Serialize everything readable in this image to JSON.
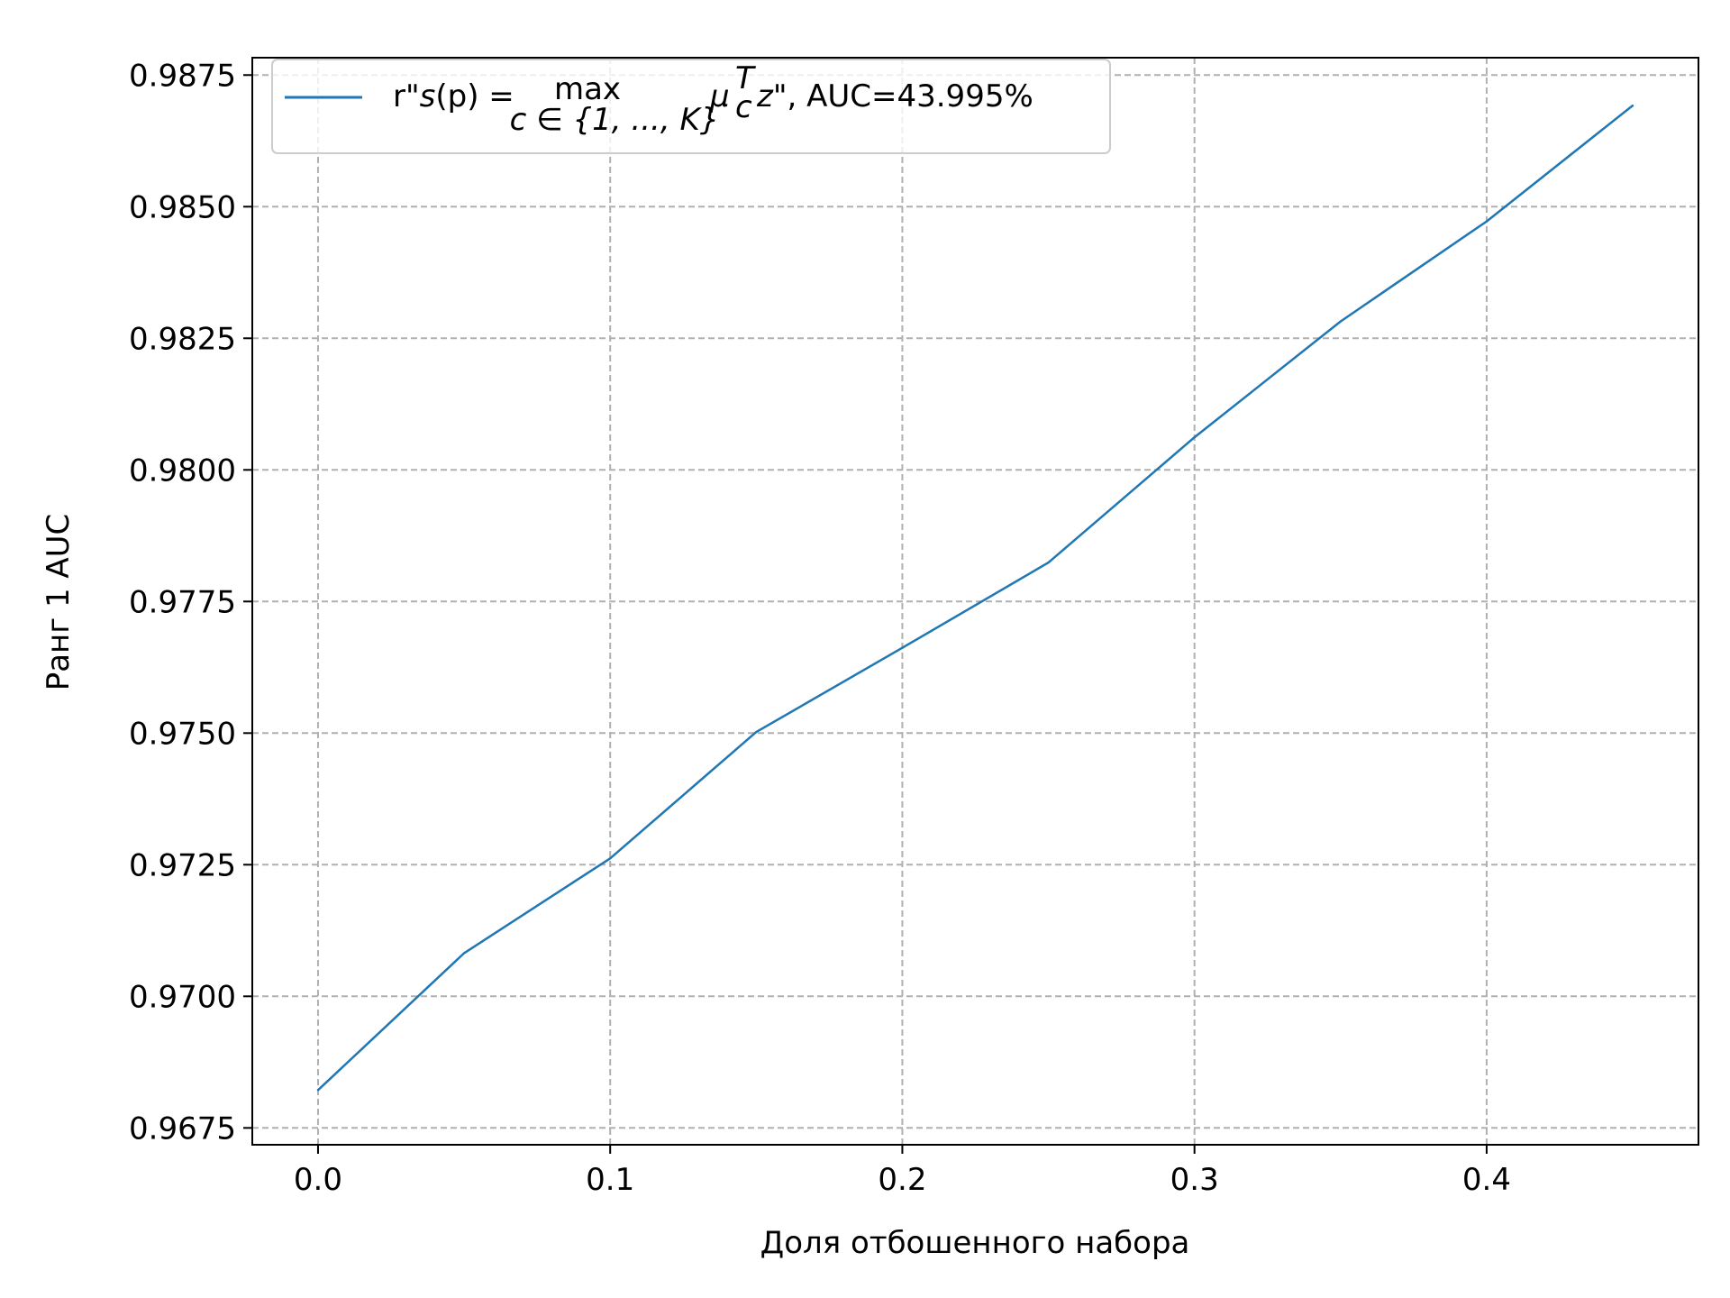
{
  "chart_data": {
    "type": "line",
    "xlabel": "Доля отбошенного набора",
    "ylabel": "Ранг 1 AUC",
    "xlim": [
      -0.0225,
      0.4725
    ],
    "ylim": [
      0.96718,
      0.98783
    ],
    "x_ticks": [
      0.0,
      0.1,
      0.2,
      0.3,
      0.4
    ],
    "x_tick_labels": [
      "0.0",
      "0.1",
      "0.2",
      "0.3",
      "0.4"
    ],
    "y_ticks": [
      0.9675,
      0.97,
      0.9725,
      0.975,
      0.9775,
      0.98,
      0.9825,
      0.985,
      0.9875
    ],
    "y_tick_labels": [
      "0.9675",
      "0.9700",
      "0.9725",
      "0.9750",
      "0.9775",
      "0.9800",
      "0.9825",
      "0.9850",
      "0.9875"
    ],
    "grid": true,
    "legend_position": "top-left",
    "series": [
      {
        "name": "r\"s(p) = max_{c∈{1,...,K}} μ_c^T z\", AUC=43.995%",
        "color": "#1f77b4",
        "x": [
          0.0,
          0.05,
          0.1,
          0.15,
          0.2,
          0.25,
          0.3,
          0.35,
          0.4,
          0.45
        ],
        "y": [
          0.96822,
          0.97082,
          0.97262,
          0.97502,
          0.97662,
          0.97824,
          0.98062,
          0.98282,
          0.98472,
          0.98692
        ]
      }
    ]
  },
  "legend": {
    "prefix": "r\"",
    "s": "s",
    "p_paren": "(p) =",
    "max": "max",
    "max_sub": "c ∈ {1, ..., K}",
    "mu": "μ",
    "mu_sup": "T",
    "mu_sub": "c",
    "z_suffix": "z\", AUC=43.995%"
  }
}
